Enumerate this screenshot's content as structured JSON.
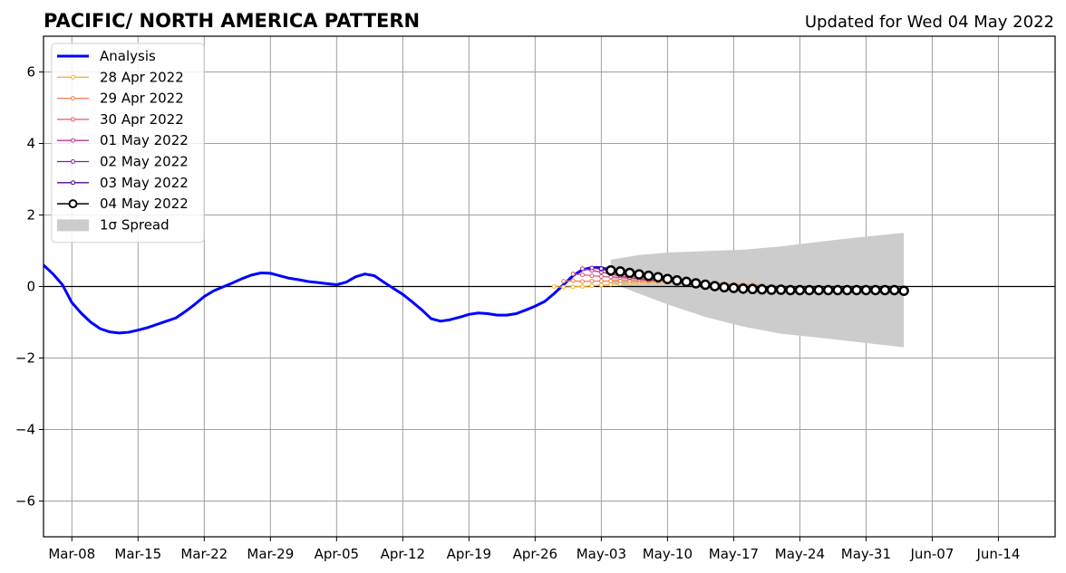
{
  "chart_data": {
    "type": "line",
    "title": "PACIFIC/ NORTH AMERICA PATTERN",
    "subtitle": "Updated for Wed 04 May 2022",
    "xlabel": "",
    "ylabel": "",
    "x_range": [
      "2022-03-05",
      "2022-06-20"
    ],
    "ylim": [
      -7,
      7
    ],
    "y_ticks": [
      -6,
      -4,
      -2,
      0,
      2,
      4,
      6
    ],
    "y_tick_labels": [
      "−6",
      "−4",
      "−2",
      "0",
      "2",
      "4",
      "6"
    ],
    "x_ticks": [
      "2022-03-08",
      "2022-03-15",
      "2022-03-22",
      "2022-03-29",
      "2022-04-05",
      "2022-04-12",
      "2022-04-19",
      "2022-04-26",
      "2022-05-03",
      "2022-05-10",
      "2022-05-17",
      "2022-05-24",
      "2022-05-31",
      "2022-06-07",
      "2022-06-14"
    ],
    "x_tick_labels": [
      "Mar-08",
      "Mar-15",
      "Mar-22",
      "Mar-29",
      "Apr-05",
      "Apr-12",
      "Apr-19",
      "Apr-26",
      "May-03",
      "May-10",
      "May-17",
      "May-24",
      "May-31",
      "Jun-07",
      "Jun-14"
    ],
    "grid": true,
    "legend_position": "top-left",
    "analysis": {
      "name": "Analysis",
      "color": "#0000ff",
      "x": [
        "2022-03-05",
        "2022-03-06",
        "2022-03-07",
        "2022-03-08",
        "2022-03-09",
        "2022-03-10",
        "2022-03-11",
        "2022-03-12",
        "2022-03-13",
        "2022-03-14",
        "2022-03-15",
        "2022-03-16",
        "2022-03-17",
        "2022-03-18",
        "2022-03-19",
        "2022-03-20",
        "2022-03-21",
        "2022-03-22",
        "2022-03-23",
        "2022-03-24",
        "2022-03-25",
        "2022-03-26",
        "2022-03-27",
        "2022-03-28",
        "2022-03-29",
        "2022-03-30",
        "2022-03-31",
        "2022-04-01",
        "2022-04-02",
        "2022-04-03",
        "2022-04-04",
        "2022-04-05",
        "2022-04-06",
        "2022-04-07",
        "2022-04-08",
        "2022-04-09",
        "2022-04-10",
        "2022-04-11",
        "2022-04-12",
        "2022-04-13",
        "2022-04-14",
        "2022-04-15",
        "2022-04-16",
        "2022-04-17",
        "2022-04-18",
        "2022-04-19",
        "2022-04-20",
        "2022-04-21",
        "2022-04-22",
        "2022-04-23",
        "2022-04-24",
        "2022-04-25",
        "2022-04-26",
        "2022-04-27",
        "2022-04-28",
        "2022-04-29",
        "2022-04-30",
        "2022-05-01",
        "2022-05-02",
        "2022-05-03",
        "2022-05-04"
      ],
      "y": [
        0.6,
        0.35,
        0.05,
        -0.45,
        -0.75,
        -1.0,
        -1.18,
        -1.27,
        -1.3,
        -1.28,
        -1.22,
        -1.15,
        -1.06,
        -0.97,
        -0.88,
        -0.7,
        -0.5,
        -0.28,
        -0.12,
        -0.01,
        0.1,
        0.22,
        0.32,
        0.38,
        0.37,
        0.3,
        0.23,
        0.19,
        0.14,
        0.11,
        0.08,
        0.05,
        0.12,
        0.27,
        0.35,
        0.3,
        0.12,
        -0.05,
        -0.22,
        -0.43,
        -0.65,
        -0.9,
        -0.97,
        -0.93,
        -0.86,
        -0.78,
        -0.74,
        -0.76,
        -0.8,
        -0.8,
        -0.76,
        -0.66,
        -0.55,
        -0.42,
        -0.2,
        0.05,
        0.3,
        0.47,
        0.53,
        0.53,
        0.45
      ]
    },
    "series": [
      {
        "name": "28 Apr 2022",
        "color": "#fcb32c",
        "start": "2022-04-28",
        "values": [
          0.0,
          -0.02,
          -0.01,
          0.0,
          0.02,
          0.04,
          0.06,
          0.08,
          0.1,
          0.11,
          0.12,
          0.12,
          0.12,
          0.11
        ]
      },
      {
        "name": "29 Apr 2022",
        "color": "#f47d4f",
        "start": "2022-04-29",
        "values": [
          0.15,
          0.16,
          0.14,
          0.15,
          0.15,
          0.15,
          0.16,
          0.16,
          0.16,
          0.16,
          0.16,
          0.15,
          0.14,
          0.12,
          0.11,
          0.1,
          0.09,
          0.07,
          0.06,
          0.05,
          0.04,
          0.03
        ]
      },
      {
        "name": "30 Apr 2022",
        "color": "#dd5a74",
        "start": "2022-04-30",
        "values": [
          0.35,
          0.33,
          0.3,
          0.28,
          0.27,
          0.25,
          0.23,
          0.22,
          0.2,
          0.19,
          0.18,
          0.17,
          0.16
        ]
      },
      {
        "name": "01 May 2022",
        "color": "#b93a8a",
        "start": "2022-05-01",
        "values": [
          0.5,
          0.45,
          0.4,
          0.35,
          0.3,
          0.25,
          0.21,
          0.18,
          0.16
        ]
      },
      {
        "name": "02 May 2022",
        "color": "#8c1fa0",
        "start": "2022-05-02",
        "values": [
          0.52,
          0.48,
          0.42,
          0.37,
          0.32,
          0.27
        ]
      },
      {
        "name": "03 May 2022",
        "color": "#4a0c8f",
        "start": "2022-05-03",
        "values": [
          0.5,
          0.45,
          0.38,
          0.33
        ]
      },
      {
        "name": "04 May 2022",
        "color": "#000000",
        "start": "2022-05-04",
        "values": [
          0.45,
          0.42,
          0.38,
          0.34,
          0.3,
          0.26,
          0.21,
          0.17,
          0.13,
          0.09,
          0.05,
          0.01,
          -0.02,
          -0.04,
          -0.06,
          -0.07,
          -0.08,
          -0.09,
          -0.09,
          -0.1,
          -0.1,
          -0.1,
          -0.1,
          -0.1,
          -0.1,
          -0.1,
          -0.1,
          -0.1,
          -0.1,
          -0.1,
          -0.1,
          -0.12
        ]
      }
    ],
    "spread": {
      "name": "1σ Spread",
      "color": "#cccccc",
      "x": [
        "2022-05-04",
        "2022-05-07",
        "2022-05-10",
        "2022-05-14",
        "2022-05-18",
        "2022-05-22",
        "2022-05-26",
        "2022-05-30",
        "2022-06-04"
      ],
      "upper": [
        0.75,
        0.88,
        0.95,
        0.99,
        1.03,
        1.12,
        1.25,
        1.37,
        1.5
      ],
      "lower": [
        0.1,
        -0.2,
        -0.5,
        -0.85,
        -1.12,
        -1.32,
        -1.43,
        -1.55,
        -1.7
      ]
    }
  }
}
